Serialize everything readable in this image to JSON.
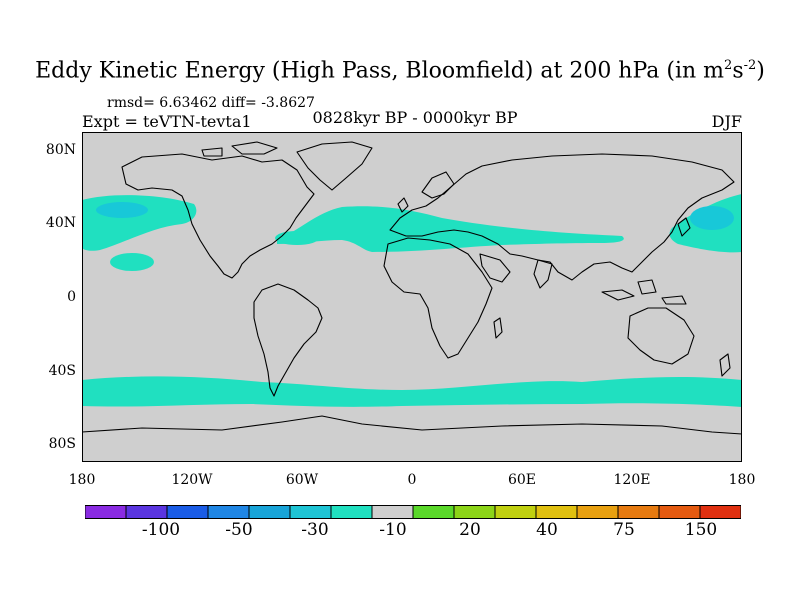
{
  "title": {
    "main": "Eddy Kinetic Energy (High Pass, Bloomfield) at 200 hPa (in m",
    "sup1": "2",
    "mid": "s",
    "sup2": "-2",
    "end": ")"
  },
  "stats": "rmsd= 6.63462  diff= -3.8627",
  "experiment": "Expt = teVTN-tevta1",
  "period": "0828kyr BP - 0000kyr BP",
  "season": "DJF",
  "axes": {
    "lat_labels": [
      "80N",
      "40N",
      "0",
      "40S",
      "80S"
    ],
    "lon_labels": [
      "180",
      "120W",
      "60W",
      "0",
      "60E",
      "120E",
      "180"
    ]
  },
  "colorbar": {
    "colors": [
      "#8a2be2",
      "#5a35e0",
      "#1a5ce6",
      "#1f86e4",
      "#18a4d8",
      "#1ec4d4",
      "#20e0c0",
      "#cfcfcf",
      "#5ad82a",
      "#8cd418",
      "#c0d010",
      "#e0c010",
      "#e8a010",
      "#e67a10",
      "#e45a10",
      "#e03010"
    ],
    "labels": [
      "-100",
      "-50",
      "-30",
      "-10",
      "20",
      "40",
      "75",
      "150"
    ]
  },
  "map_colors": {
    "background": "#cfcfcf",
    "anomaly": "#20e0c0",
    "anomaly_light": "#18c8d8",
    "coastline": "#000000"
  }
}
